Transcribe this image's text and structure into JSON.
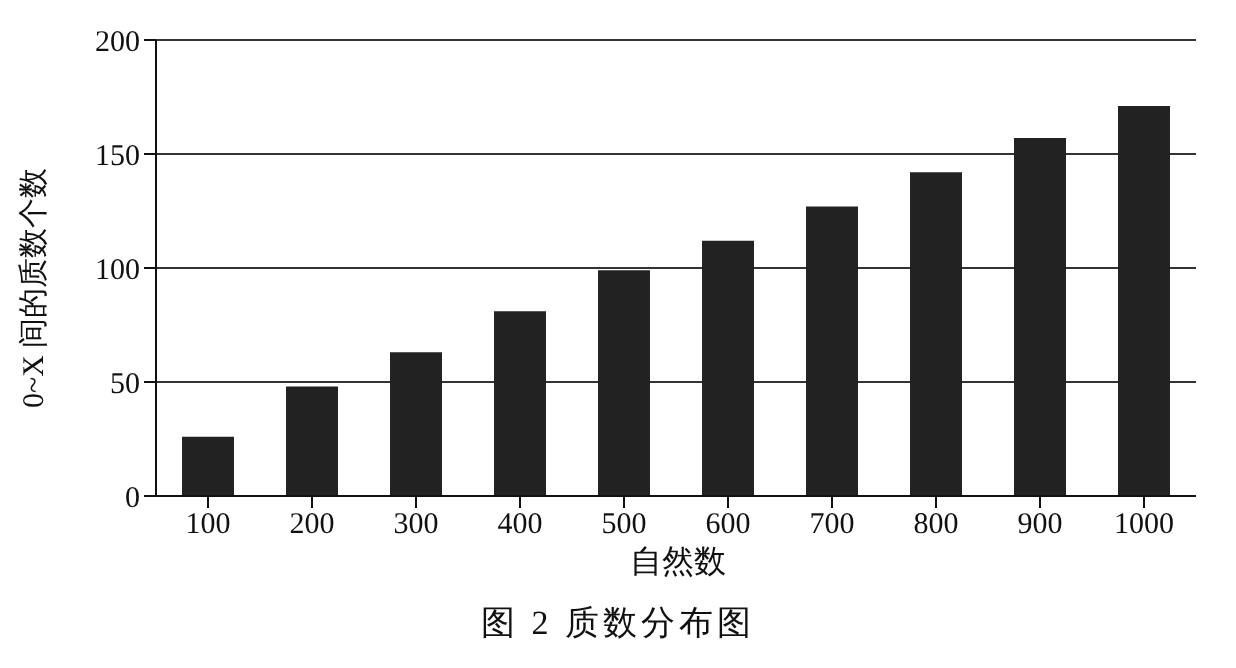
{
  "chart_data": {
    "type": "bar",
    "title": "图 2  质数分布图",
    "xlabel": "自然数",
    "ylabel": "0~X 间的质数个数",
    "categories": [
      "100",
      "200",
      "300",
      "400",
      "500",
      "600",
      "700",
      "800",
      "900",
      "1000"
    ],
    "values": [
      26,
      48,
      63,
      81,
      99,
      112,
      127,
      142,
      157,
      171
    ],
    "color": "#222222",
    "ylim": [
      0,
      200
    ],
    "yticks": [
      0,
      50,
      100,
      150,
      200
    ],
    "grid": "y",
    "legend": false
  }
}
